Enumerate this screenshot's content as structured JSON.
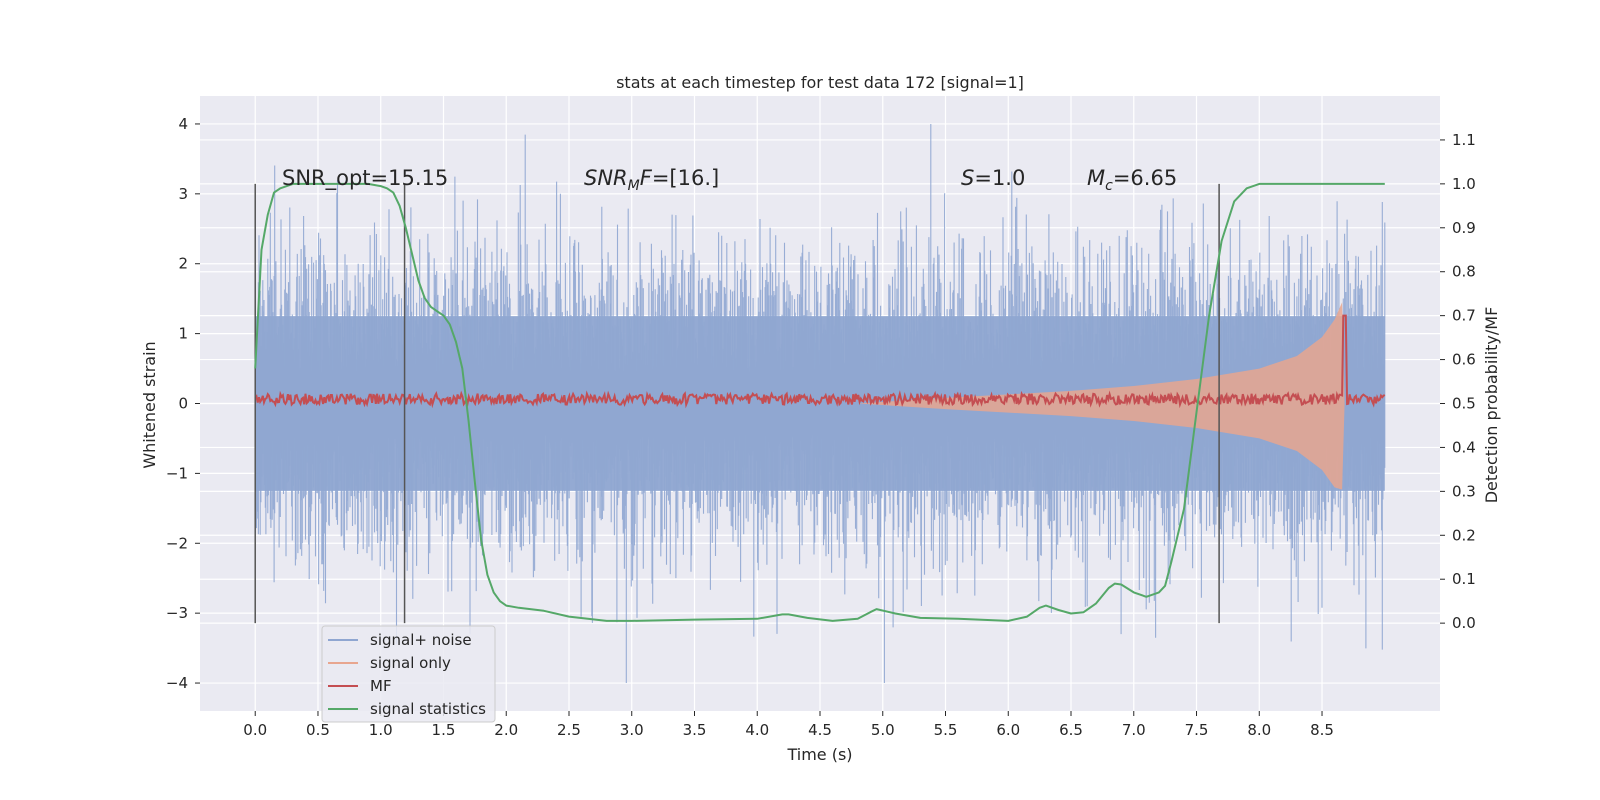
{
  "chart_data": {
    "type": "line",
    "title": "stats at each timestep for test data 172 [signal=1]",
    "xlabel": "Time (s)",
    "ylabel": "Whitened strain",
    "y2label": "Detection probability/MF",
    "xlim": [
      -0.44,
      9.44
    ],
    "ylim": [
      -4.4,
      4.4
    ],
    "y2lim": [
      -0.2,
      1.2
    ],
    "xticks": [
      "0.0",
      "0.5",
      "1.0",
      "1.5",
      "2.0",
      "2.5",
      "3.0",
      "3.5",
      "4.0",
      "4.5",
      "5.0",
      "5.5",
      "6.0",
      "6.5",
      "7.0",
      "7.5",
      "8.0",
      "8.5"
    ],
    "yticks": [
      "−4",
      "−3",
      "−2",
      "−1",
      "0",
      "1",
      "2",
      "3",
      "4"
    ],
    "y2ticks": [
      "0.0",
      "0.1",
      "0.2",
      "0.3",
      "0.4",
      "0.5",
      "0.6",
      "0.7",
      "0.8",
      "0.9",
      "1.0",
      "1.1"
    ],
    "grid": true,
    "legend_position": "lower-left",
    "annotations": {
      "snr_opt": "SNR_opt=15.15",
      "snr_mf_italic": "SNR",
      "snr_mf_sub": "M",
      "snr_mf_italic2": "F",
      "snr_mf_value": "=[16.]",
      "s_label": "S",
      "s_value": "=1.0",
      "mc_label": "M",
      "mc_sub": "c",
      "mc_value": "=6.65"
    },
    "vlines_x": [
      0.0,
      1.19,
      7.68
    ],
    "series": [
      {
        "name": "signal+ noise",
        "color": "#8fa6d1",
        "axis": "left",
        "description_range": [
          0.0,
          9.0
        ],
        "std": 0.95,
        "x": [
          0.0,
          9.0
        ]
      },
      {
        "name": "signal only",
        "color": "#e8a68f",
        "axis": "left",
        "envelope_x": [
          4.8,
          5.5,
          6.0,
          6.5,
          7.0,
          7.5,
          8.0,
          8.3,
          8.5,
          8.6,
          8.66,
          8.68
        ],
        "envelope_y": [
          0.0,
          0.08,
          0.13,
          0.18,
          0.25,
          0.35,
          0.5,
          0.68,
          0.95,
          1.2,
          1.45,
          0.0
        ]
      },
      {
        "name": "MF",
        "color": "#c44e52",
        "axis": "right",
        "baseline": 0.51,
        "peak_x": 8.68,
        "peak_y": 0.7
      },
      {
        "name": "signal statistics",
        "color": "#55a868",
        "axis": "right",
        "x": [
          0.0,
          0.05,
          0.1,
          0.15,
          0.2,
          0.3,
          0.5,
          0.7,
          0.9,
          1.0,
          1.05,
          1.1,
          1.15,
          1.2,
          1.25,
          1.3,
          1.35,
          1.4,
          1.45,
          1.5,
          1.55,
          1.6,
          1.65,
          1.7,
          1.75,
          1.8,
          1.85,
          1.9,
          1.95,
          2.0,
          2.1,
          2.3,
          2.5,
          2.8,
          3.0,
          3.5,
          4.0,
          4.2,
          4.25,
          4.4,
          4.6,
          4.8,
          4.9,
          4.95,
          5.1,
          5.3,
          5.6,
          6.0,
          6.15,
          6.25,
          6.3,
          6.4,
          6.5,
          6.6,
          6.7,
          6.8,
          6.85,
          6.9,
          7.0,
          7.1,
          7.2,
          7.25,
          7.3,
          7.4,
          7.5,
          7.6,
          7.7,
          7.8,
          7.9,
          8.0,
          8.5,
          9.0
        ],
        "y": [
          0.58,
          0.85,
          0.93,
          0.98,
          0.99,
          1.0,
          1.0,
          1.0,
          1.0,
          0.995,
          0.99,
          0.98,
          0.95,
          0.9,
          0.84,
          0.78,
          0.74,
          0.72,
          0.71,
          0.7,
          0.68,
          0.64,
          0.58,
          0.46,
          0.32,
          0.19,
          0.11,
          0.07,
          0.05,
          0.04,
          0.035,
          0.028,
          0.015,
          0.005,
          0.005,
          0.008,
          0.01,
          0.02,
          0.02,
          0.012,
          0.005,
          0.01,
          0.025,
          0.032,
          0.022,
          0.012,
          0.01,
          0.005,
          0.015,
          0.035,
          0.04,
          0.03,
          0.022,
          0.025,
          0.045,
          0.08,
          0.09,
          0.088,
          0.07,
          0.06,
          0.07,
          0.085,
          0.14,
          0.26,
          0.48,
          0.7,
          0.87,
          0.96,
          0.99,
          1.0,
          1.0,
          1.0
        ]
      }
    ]
  }
}
